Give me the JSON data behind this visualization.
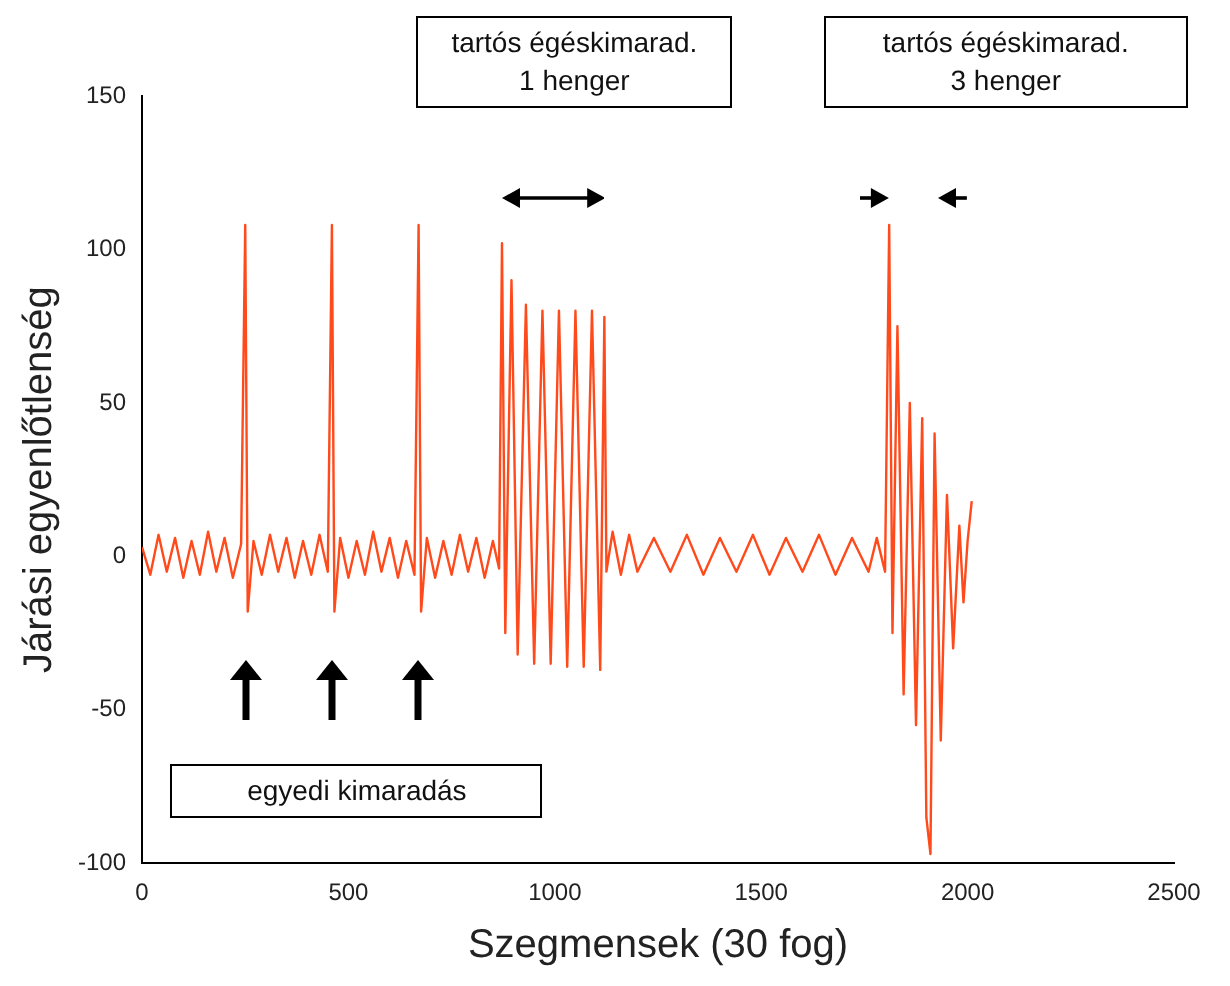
{
  "chart_data": {
    "type": "line",
    "xlabel": "Szegmensek (30 fog)",
    "ylabel": "Járási egyenlőtlenség",
    "xlim": [
      0,
      2500
    ],
    "xticks": [
      0,
      500,
      1000,
      1500,
      2000,
      2500
    ],
    "ylim": [
      -100,
      150
    ],
    "yticks": [
      -100,
      -50,
      0,
      50,
      100,
      150
    ],
    "grid": false,
    "legend": false,
    "marker": "none",
    "line_style": "solid",
    "annotations": [
      "tartós égéskimarad.\n1 henger",
      "tartós égéskimarad.\n3 henger",
      "egyedi kimaradás"
    ],
    "series": [
      {
        "color": "#ff4a1c",
        "x": [
          0,
          20,
          40,
          60,
          80,
          100,
          120,
          140,
          160,
          180,
          200,
          220,
          240,
          250,
          256,
          270,
          290,
          310,
          330,
          350,
          370,
          390,
          410,
          430,
          450,
          460,
          466,
          480,
          500,
          520,
          540,
          560,
          580,
          600,
          620,
          640,
          660,
          670,
          676,
          690,
          710,
          730,
          750,
          770,
          790,
          810,
          830,
          850,
          865,
          872,
          880,
          895,
          910,
          930,
          950,
          970,
          990,
          1010,
          1030,
          1050,
          1070,
          1090,
          1110,
          1120,
          1125,
          1140,
          1160,
          1180,
          1200,
          1240,
          1280,
          1320,
          1360,
          1400,
          1440,
          1480,
          1520,
          1560,
          1600,
          1640,
          1680,
          1720,
          1760,
          1780,
          1800,
          1810,
          1818,
          1830,
          1845,
          1860,
          1875,
          1890,
          1900,
          1910,
          1920,
          1935,
          1950,
          1965,
          1980,
          1990,
          2000,
          2010
        ],
        "values": [
          3,
          -6,
          7,
          -5,
          6,
          -7,
          5,
          -6,
          8,
          -5,
          6,
          -7,
          4,
          108,
          -18,
          5,
          -6,
          7,
          -5,
          6,
          -7,
          5,
          -6,
          7,
          -5,
          108,
          -18,
          6,
          -7,
          5,
          -6,
          8,
          -5,
          6,
          -7,
          5,
          -6,
          108,
          -18,
          6,
          -7,
          5,
          -6,
          7,
          -5,
          6,
          -7,
          5,
          -4,
          102,
          -25,
          90,
          -32,
          82,
          -35,
          80,
          -35,
          80,
          -36,
          80,
          -36,
          80,
          -37,
          78,
          -5,
          8,
          -6,
          7,
          -5,
          6,
          -5,
          7,
          -6,
          6,
          -5,
          7,
          -6,
          6,
          -5,
          7,
          -6,
          6,
          -5,
          6,
          -5,
          108,
          -25,
          75,
          -45,
          50,
          -55,
          45,
          -85,
          -97,
          40,
          -60,
          20,
          -30,
          10,
          -15,
          5,
          18
        ]
      }
    ]
  }
}
